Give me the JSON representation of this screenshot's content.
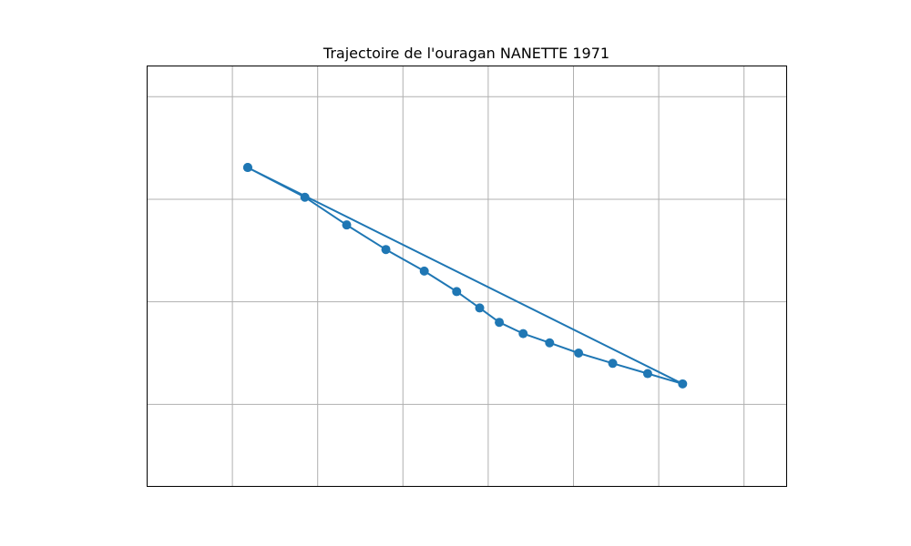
{
  "chart_data": {
    "type": "line",
    "title": "Trajectoire de l'ouragan NANETTE 1971",
    "xlabel": "",
    "ylabel": "",
    "xlim": [
      0,
      7.5
    ],
    "ylim": [
      0,
      4.1
    ],
    "grid": true,
    "x_gridlines": [
      1,
      2,
      3,
      4,
      5,
      6,
      7
    ],
    "y_gridlines": [
      0.8,
      1.8,
      2.8,
      3.8
    ],
    "series": [
      {
        "name": "",
        "color": "#1f77b4",
        "marker": "circle",
        "x": [
          1.18,
          1.85,
          2.34,
          2.8,
          3.25,
          3.63,
          3.9,
          4.13,
          4.41,
          4.72,
          5.06,
          5.46,
          5.87,
          6.28,
          1.18
        ],
        "y": [
          3.11,
          2.82,
          2.55,
          2.31,
          2.1,
          1.9,
          1.74,
          1.6,
          1.49,
          1.4,
          1.3,
          1.2,
          1.1,
          1.0,
          3.11
        ]
      }
    ]
  }
}
